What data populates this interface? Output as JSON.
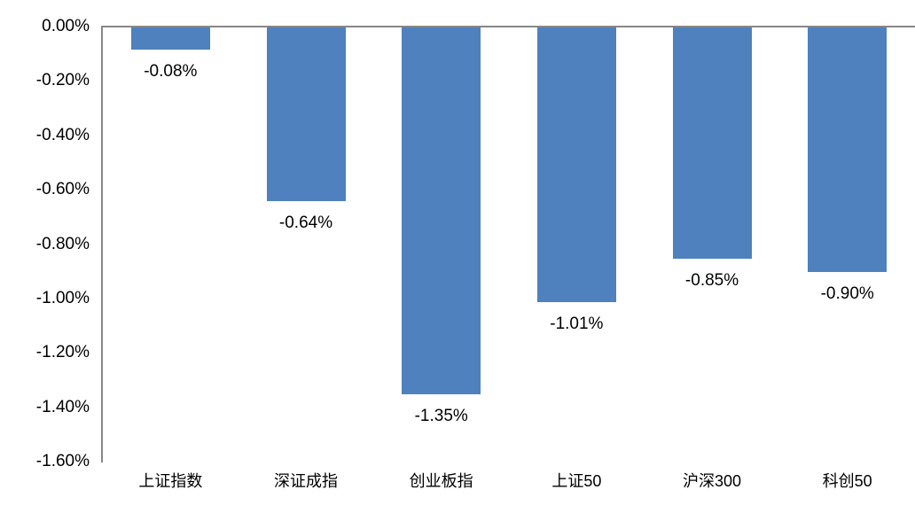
{
  "chart_data": {
    "type": "bar",
    "title": "",
    "xlabel": "",
    "ylabel": "",
    "categories": [
      "上证指数",
      "深证成指",
      "创业板指",
      "上证50",
      "沪深300",
      "科创50"
    ],
    "values": [
      -0.08,
      -0.64,
      -1.35,
      -1.01,
      -0.85,
      -0.9
    ],
    "value_labels": [
      "-0.08%",
      "-0.64%",
      "-1.35%",
      "-1.01%",
      "-0.85%",
      "-0.90%"
    ],
    "ylim": [
      -1.6,
      0.0
    ],
    "y_ticks": [
      "0.00%",
      "-0.20%",
      "-0.40%",
      "-0.60%",
      "-0.80%",
      "-1.00%",
      "-1.20%",
      "-1.40%",
      "-1.60%"
    ],
    "grid": false,
    "legend": false,
    "bar_color": "#4E81BD",
    "axis_color": "#878787",
    "label_color": "#000000"
  }
}
